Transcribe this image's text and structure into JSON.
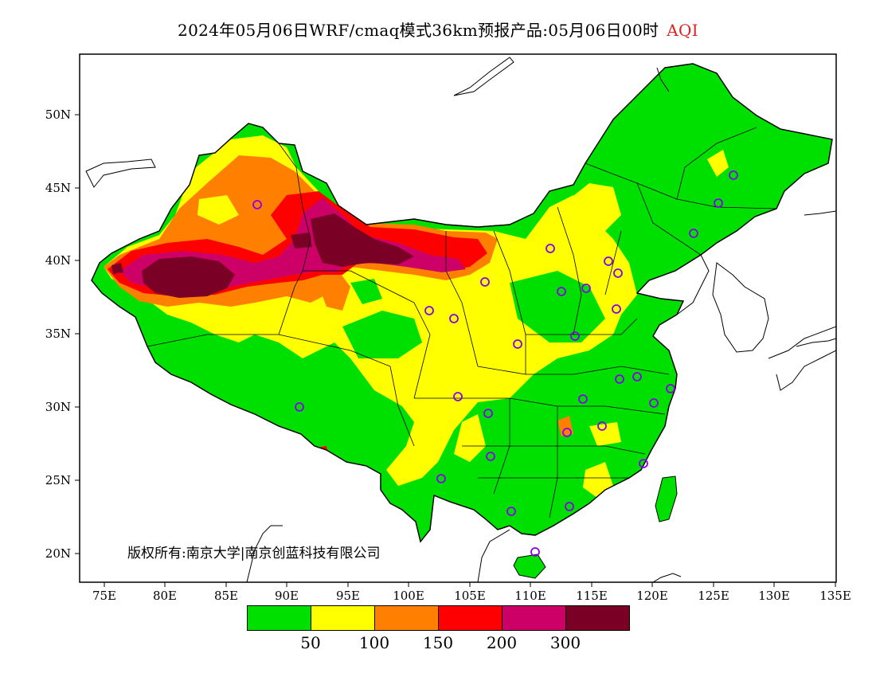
{
  "title": {
    "main": "2024年05月06日WRF/cmaq模式36km预报产品:05月06日00时",
    "variable": "AQI"
  },
  "map": {
    "lat_labels": [
      "50N",
      "45N",
      "40N",
      "35N",
      "30N",
      "25N",
      "20N"
    ],
    "lon_labels": [
      "75E",
      "80E",
      "85E",
      "90E",
      "95E",
      "100E",
      "105E",
      "110E",
      "115E",
      "120E",
      "125E",
      "130E",
      "135E"
    ],
    "copyright": "版权所有:南京大学|南京创蓝科技有限公司",
    "colors": {
      "good": "#00e000",
      "moderate": "#ffff00",
      "sensitive": "#ff8000",
      "unhealthy": "#ff0000",
      "very_unhealthy": "#cc0066",
      "hazardous": "#7a0025"
    }
  },
  "legend": {
    "colors": [
      "#00e000",
      "#ffff00",
      "#ff8000",
      "#ff0000",
      "#cc0066",
      "#7a0025"
    ],
    "labels": [
      "50",
      "100",
      "150",
      "200",
      "300"
    ]
  }
}
